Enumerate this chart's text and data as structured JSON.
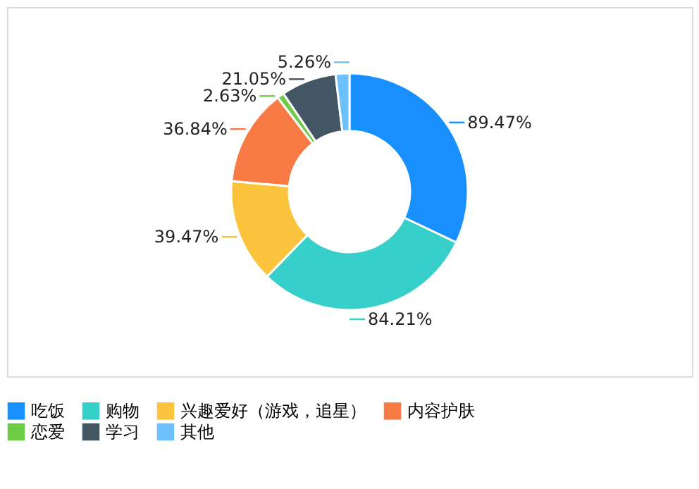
{
  "chart_data": {
    "type": "donut",
    "categories": [
      "吃饭",
      "购物",
      "兴趣爱好（游戏，追星）",
      "内容护肤",
      "恋爱",
      "学习",
      "其他"
    ],
    "values": [
      89.47,
      84.21,
      39.47,
      36.84,
      2.63,
      21.05,
      5.26
    ],
    "colors": [
      "#1890ff",
      "#36cfc9",
      "#fcc33c",
      "#f87a45",
      "#6dcb44",
      "#435664",
      "#6cc0fc"
    ],
    "value_labels": [
      "89.47%",
      "84.21%",
      "39.47%",
      "36.84%",
      "2.63%",
      "21.05%",
      "5.26%"
    ],
    "legend": "bottom"
  }
}
